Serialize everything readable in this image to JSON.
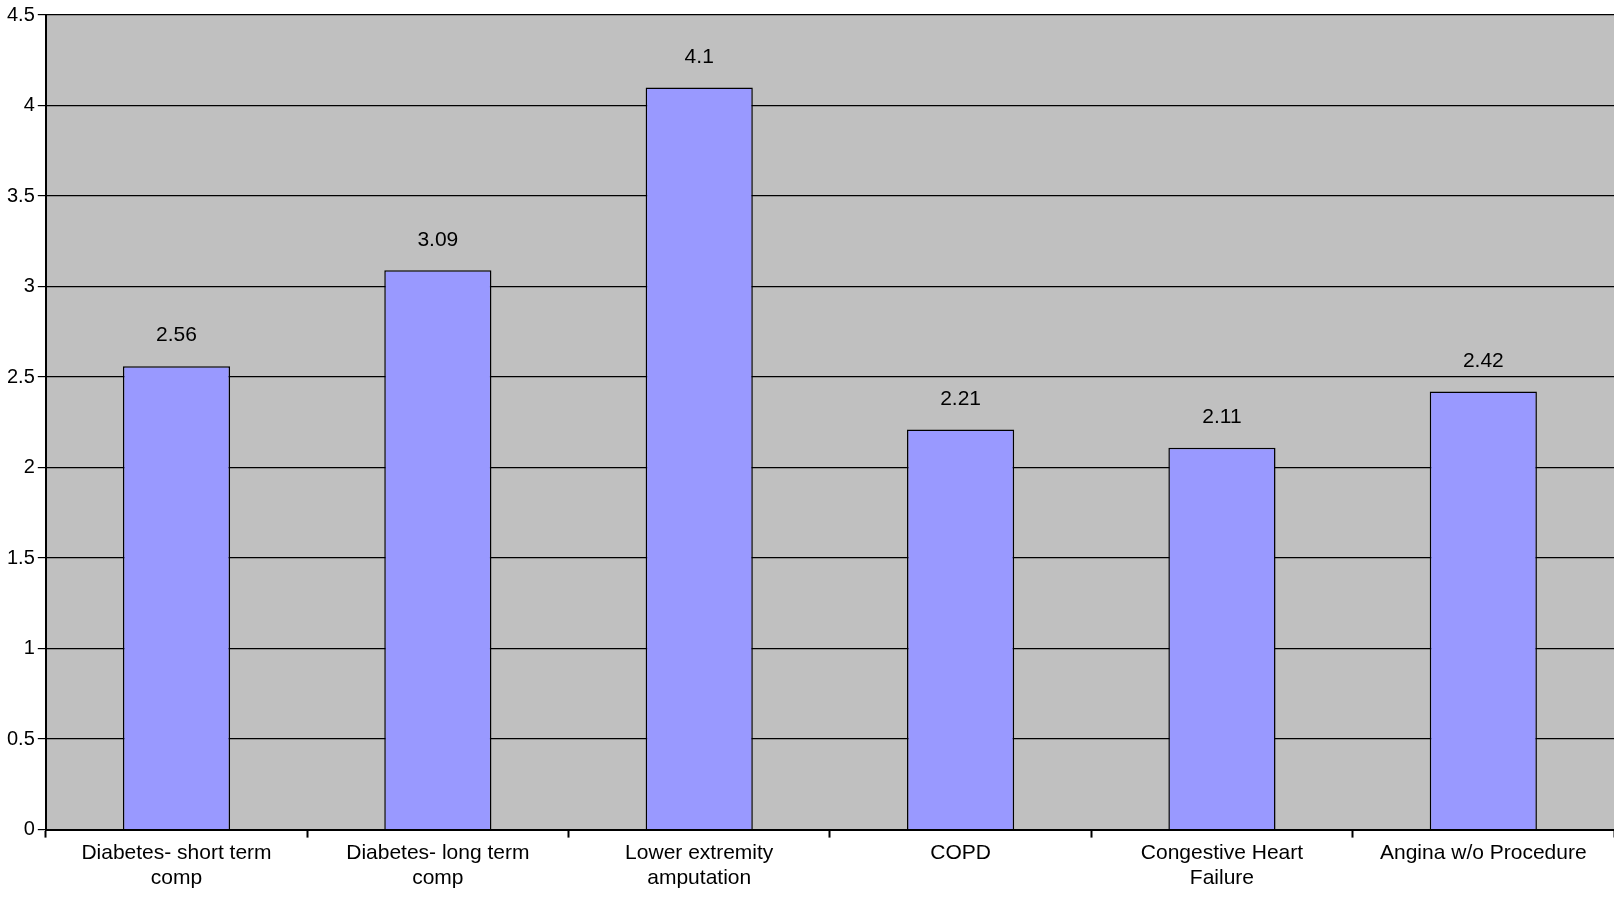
{
  "chart_data": {
    "type": "bar",
    "categories": [
      "Diabetes- short term comp",
      "Diabetes- long term comp",
      "Lower extremity amputation",
      "COPD",
      "Congestive Heart Failure",
      "Angina w/o Procedure"
    ],
    "values": [
      2.56,
      3.09,
      4.1,
      2.21,
      2.11,
      2.42
    ],
    "color": "#9999ff",
    "ylim": [
      0,
      4.5
    ],
    "yticks": [
      0,
      0.5,
      1,
      1.5,
      2,
      2.5,
      3,
      3.5,
      4,
      4.5
    ],
    "grid": "y",
    "legend": false,
    "data_labels": true
  }
}
